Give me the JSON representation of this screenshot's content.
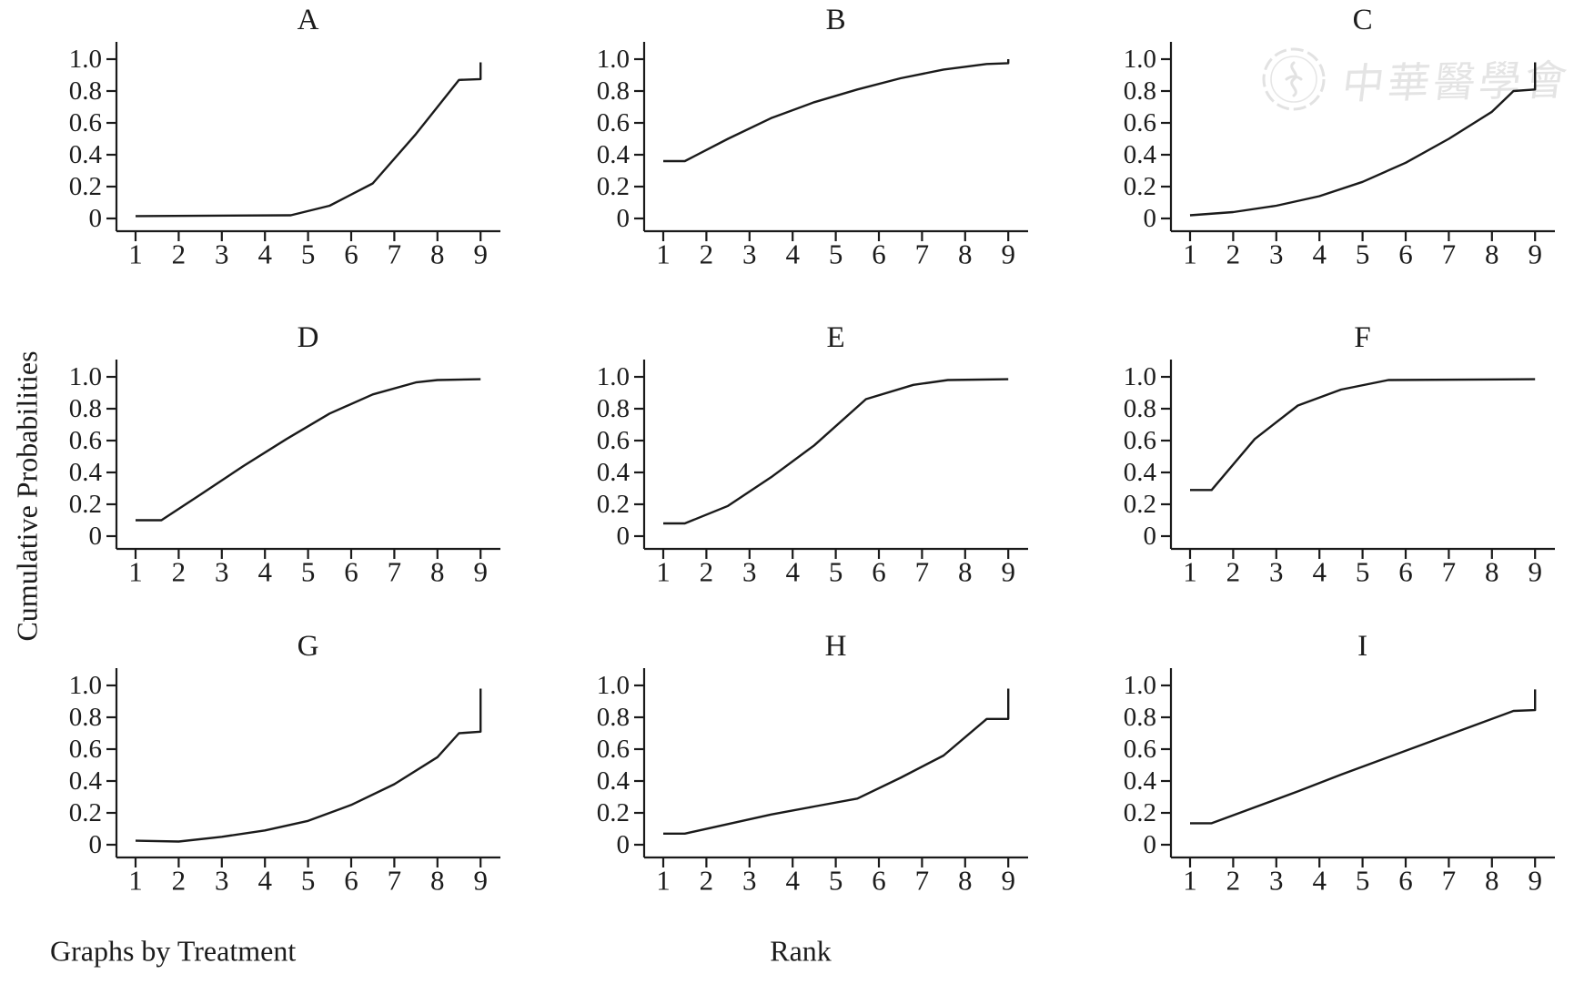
{
  "figure": {
    "ylabel": "Cumulative Probabilities",
    "xlabel": "Rank",
    "note": "Graphs by Treatment",
    "background": "#ffffff",
    "line_color": "#1a1a1a",
    "axis_color": "#1a1a1a",
    "text_color": "#1c1c1c"
  },
  "watermark": {
    "text": "中華醫學會",
    "color": "#e4e4e4",
    "logo": "chinese-medical-association-seal"
  },
  "chart_data": {
    "type": "line",
    "layout": "3x3-small-multiples",
    "title": "",
    "xlabel": "Rank",
    "ylabel": "Cumulative Probabilities",
    "note": "Graphs by Treatment",
    "x_ticks": [
      1,
      2,
      3,
      4,
      5,
      6,
      7,
      8,
      9
    ],
    "y_tick_labels": [
      "0",
      "0.2",
      "0.4",
      "0.6",
      "0.8",
      "1.0"
    ],
    "y_tick_values": [
      0,
      0.2,
      0.4,
      0.6,
      0.8,
      1.0
    ],
    "xlim": [
      1,
      9
    ],
    "ylim": [
      0,
      1.0
    ],
    "grid": false,
    "legend": "none",
    "panels": [
      {
        "label": "A",
        "points": [
          [
            1,
            0.015
          ],
          [
            4.6,
            0.02
          ],
          [
            5.5,
            0.08
          ],
          [
            6.5,
            0.22
          ],
          [
            7.5,
            0.53
          ],
          [
            8.5,
            0.87
          ],
          [
            9,
            0.875
          ],
          [
            9,
            0.98
          ]
        ]
      },
      {
        "label": "B",
        "points": [
          [
            1,
            0.36
          ],
          [
            1.5,
            0.36
          ],
          [
            2.5,
            0.5
          ],
          [
            3.5,
            0.63
          ],
          [
            4.5,
            0.73
          ],
          [
            5.5,
            0.81
          ],
          [
            6.5,
            0.88
          ],
          [
            7.5,
            0.935
          ],
          [
            8.5,
            0.97
          ],
          [
            9,
            0.975
          ],
          [
            9,
            1.0
          ]
        ]
      },
      {
        "label": "C",
        "points": [
          [
            1,
            0.02
          ],
          [
            2,
            0.04
          ],
          [
            3,
            0.08
          ],
          [
            4,
            0.14
          ],
          [
            5,
            0.23
          ],
          [
            6,
            0.35
          ],
          [
            7,
            0.5
          ],
          [
            8,
            0.67
          ],
          [
            8.5,
            0.8
          ],
          [
            9,
            0.81
          ],
          [
            9,
            0.98
          ]
        ]
      },
      {
        "label": "D",
        "points": [
          [
            1,
            0.1
          ],
          [
            1.6,
            0.1
          ],
          [
            2.5,
            0.26
          ],
          [
            3.5,
            0.44
          ],
          [
            4.5,
            0.61
          ],
          [
            5.5,
            0.77
          ],
          [
            6.5,
            0.89
          ],
          [
            7.5,
            0.965
          ],
          [
            8,
            0.98
          ],
          [
            9,
            0.985
          ]
        ]
      },
      {
        "label": "E",
        "points": [
          [
            1,
            0.08
          ],
          [
            1.5,
            0.08
          ],
          [
            2.5,
            0.19
          ],
          [
            3.5,
            0.37
          ],
          [
            4.5,
            0.57
          ],
          [
            5.7,
            0.86
          ],
          [
            6.8,
            0.95
          ],
          [
            7.6,
            0.98
          ],
          [
            9,
            0.985
          ]
        ]
      },
      {
        "label": "F",
        "points": [
          [
            1,
            0.29
          ],
          [
            1.5,
            0.29
          ],
          [
            2.5,
            0.61
          ],
          [
            3.5,
            0.82
          ],
          [
            4.5,
            0.92
          ],
          [
            5.6,
            0.98
          ],
          [
            9,
            0.985
          ]
        ]
      },
      {
        "label": "G",
        "points": [
          [
            1,
            0.025
          ],
          [
            2,
            0.02
          ],
          [
            3,
            0.05
          ],
          [
            4,
            0.09
          ],
          [
            5,
            0.15
          ],
          [
            6,
            0.25
          ],
          [
            7,
            0.38
          ],
          [
            8,
            0.55
          ],
          [
            8.5,
            0.7
          ],
          [
            9,
            0.71
          ],
          [
            9,
            0.98
          ]
        ]
      },
      {
        "label": "H",
        "points": [
          [
            1,
            0.07
          ],
          [
            1.5,
            0.07
          ],
          [
            2.5,
            0.13
          ],
          [
            3.5,
            0.19
          ],
          [
            4.5,
            0.24
          ],
          [
            5.5,
            0.29
          ],
          [
            6.5,
            0.42
          ],
          [
            7.5,
            0.56
          ],
          [
            8.5,
            0.79
          ],
          [
            9,
            0.79
          ],
          [
            9,
            0.98
          ]
        ]
      },
      {
        "label": "I",
        "points": [
          [
            1,
            0.135
          ],
          [
            1.5,
            0.135
          ],
          [
            2.5,
            0.235
          ],
          [
            3.5,
            0.335
          ],
          [
            4.5,
            0.44
          ],
          [
            5.5,
            0.54
          ],
          [
            6.5,
            0.64
          ],
          [
            7.5,
            0.74
          ],
          [
            8.5,
            0.84
          ],
          [
            9,
            0.845
          ],
          [
            9,
            0.975
          ]
        ]
      }
    ]
  }
}
